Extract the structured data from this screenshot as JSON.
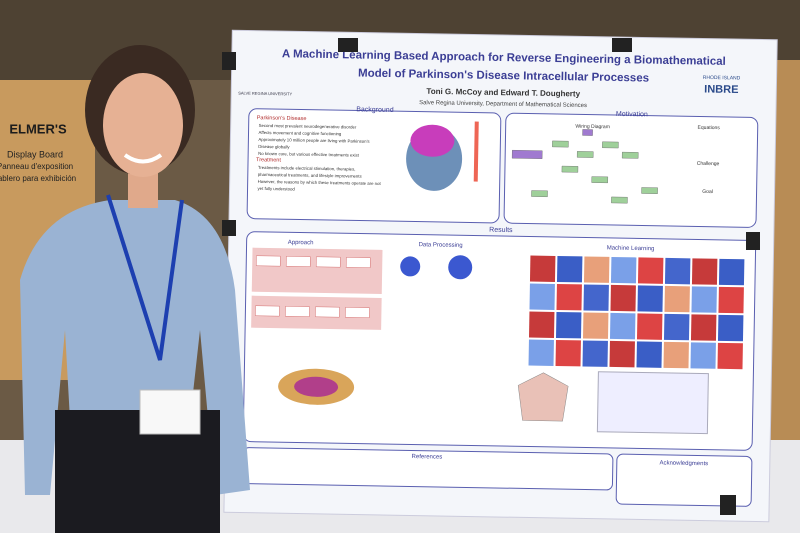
{
  "box": {
    "brand": "ELMER'S",
    "line1": "Display Board",
    "line2": "Panneau d'exposition",
    "line3": "Tablero para exhibición"
  },
  "poster": {
    "title": [
      "A Machine Learning Based Approach for Reverse Engineering a Biomathematical",
      "Model of Parkinson's Disease Intracellular Processes"
    ],
    "authors": "Toni G. McCoy and Edward T. Dougherty",
    "affiliation": "Salve Regina University, Department of Mathematical Sciences",
    "logo_left": "SALVE REGINA UNIVERSITY",
    "logo_right": [
      "RHODE ISLAND",
      "INBRE"
    ],
    "background": {
      "heading": "Background",
      "subheading": "Parkinson's Disease",
      "bullets": [
        "Second most prevalent neurodegenerative disorder",
        "Affects movement and cognitive functioning",
        "Approximately 10 million people are living with Parkinson's",
        "Disease globally",
        "No known cure, but various effective treatments exist"
      ],
      "treatment": "Treatment",
      "treatment_bullets": [
        "Treatments include electrical stimulation, therapies,",
        "pharmaceutical treatments, and lifestyle improvements",
        "However, the reasons by which these treatments operate are not",
        "yet fully understood"
      ]
    },
    "motivation": {
      "heading": "Motivation",
      "diagram": "Wiring Diagram",
      "equations": "Equations",
      "challenge": "Challenge",
      "goal": "Goal"
    },
    "results": {
      "heading": "Results",
      "approach": "Approach",
      "data_processing": "Data Processing",
      "machine_learning": "Machine Learning"
    },
    "references": "References",
    "acknowledgments": "Acknowledgments"
  }
}
